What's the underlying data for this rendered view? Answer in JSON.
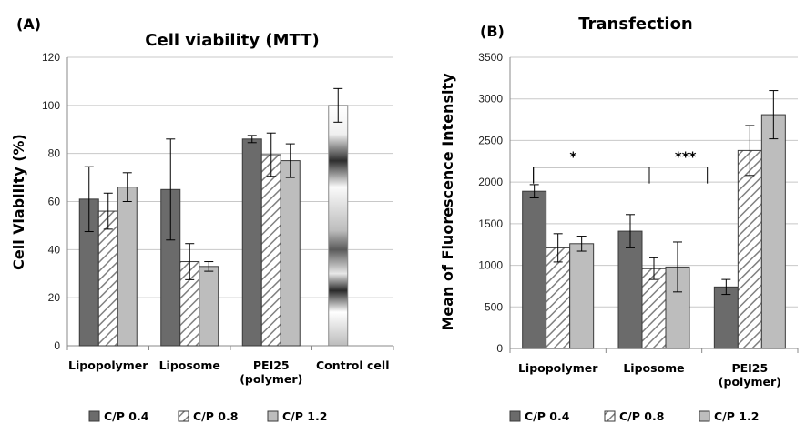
{
  "colors": {
    "C/P 0.4": "#6b6b6b",
    "C/P 0.8": "#ffffff",
    "C/P 1.2": "#bdbdbd",
    "hatch": "#808080",
    "grid": "#c8c8c8",
    "axis": "#888888"
  },
  "chart_data": [
    {
      "panel_label": "(A)",
      "type": "bar",
      "title": "Cell viability (MTT)",
      "xlabel": "",
      "ylabel": "Cell Viability (%)",
      "ylim": [
        0,
        120
      ],
      "yticks": [
        "0",
        "20",
        "40",
        "60",
        "80",
        "100",
        "120"
      ],
      "grid": true,
      "legend_position": "bottom",
      "categories": [
        [
          "Lipopolymer"
        ],
        [
          "Liposome"
        ],
        [
          "PEI25",
          "(polymer)"
        ],
        [
          "Control cell"
        ]
      ],
      "series": [
        {
          "name": "C/P 0.4",
          "values": [
            61,
            65,
            86,
            null
          ],
          "errors": [
            13.5,
            21,
            1.5,
            null
          ]
        },
        {
          "name": "C/P 0.8",
          "values": [
            56,
            35,
            79.5,
            null
          ],
          "errors": [
            7.5,
            7.5,
            9,
            null
          ]
        },
        {
          "name": "C/P 1.2",
          "values": [
            66,
            33,
            77,
            null
          ],
          "errors": [
            6,
            2,
            7,
            null
          ]
        }
      ],
      "control_bar": {
        "category": "Control cell",
        "value": 100,
        "error": 7
      }
    },
    {
      "panel_label": "(B)",
      "type": "bar",
      "title": "Transfection",
      "xlabel": "",
      "ylabel": "Mean of Fluorescence Intensity",
      "ylim": [
        0,
        3500
      ],
      "yticks": [
        "0",
        "500",
        "1000",
        "1500",
        "2000",
        "2500",
        "3000",
        "3500"
      ],
      "grid": true,
      "legend_position": "bottom",
      "categories": [
        [
          "Lipopolymer"
        ],
        [
          "Liposome"
        ],
        [
          "PEI25",
          "(polymer)"
        ]
      ],
      "series": [
        {
          "name": "C/P 0.4",
          "values": [
            1890,
            1410,
            740
          ],
          "errors": [
            80,
            200,
            90
          ]
        },
        {
          "name": "C/P 0.8",
          "values": [
            1210,
            960,
            2380
          ],
          "errors": [
            170,
            130,
            300
          ]
        },
        {
          "name": "C/P 1.2",
          "values": [
            1260,
            980,
            2810
          ],
          "errors": [
            90,
            300,
            290
          ]
        }
      ],
      "significance": [
        {
          "label": "*",
          "from_category": 0,
          "to_category": 1
        },
        {
          "label": "***",
          "from_category": 0,
          "to_category": 2
        }
      ]
    }
  ]
}
